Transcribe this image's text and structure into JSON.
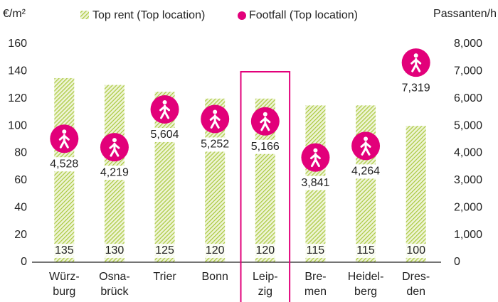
{
  "chart_data": {
    "type": "bar",
    "ylabel": "€/m²",
    "y2label": "Passanten/h",
    "categories": [
      [
        "Würz-",
        "burg"
      ],
      [
        "Osna-",
        "brück"
      ],
      [
        "Trier"
      ],
      [
        "Bonn"
      ],
      [
        "Leip-",
        "zig"
      ],
      [
        "Bre-",
        "men"
      ],
      [
        "Heidel-",
        "berg"
      ],
      [
        "Dres-",
        "den"
      ]
    ],
    "series": [
      {
        "name": "Top rent (Top location)",
        "type": "bar",
        "color": "#a9c83c",
        "values": [
          135,
          130,
          125,
          120,
          120,
          115,
          115,
          100
        ]
      },
      {
        "name": "Footfall (Top location)",
        "type": "bubble",
        "axis": "y2",
        "color": "#e2007a",
        "values": [
          4528,
          4219,
          5604,
          5252,
          5166,
          3841,
          4264,
          7319
        ],
        "value_labels": [
          "4,528",
          "4,219",
          "5,604",
          "5,252",
          "5,166",
          "3,841",
          "4,264",
          "7,319"
        ]
      }
    ],
    "ylim": [
      0,
      160
    ],
    "yticks": [
      0,
      20,
      40,
      60,
      80,
      100,
      120,
      140,
      160
    ],
    "y2lim": [
      0,
      8000
    ],
    "y2ticks": [
      0,
      {
        "value": 1000,
        "label": "1,000"
      },
      {
        "value": 2000,
        "label": "2,000"
      },
      {
        "value": 3000,
        "label": "3,000"
      },
      {
        "value": 4000,
        "label": "4,000"
      },
      {
        "value": 5000,
        "label": "5,000"
      },
      {
        "value": 6000,
        "label": "6,000"
      },
      {
        "value": 7000,
        "label": "7,000"
      },
      {
        "value": 8000,
        "label": "8,000"
      }
    ],
    "highlight": 4,
    "highlight_color": "#e2007a"
  }
}
